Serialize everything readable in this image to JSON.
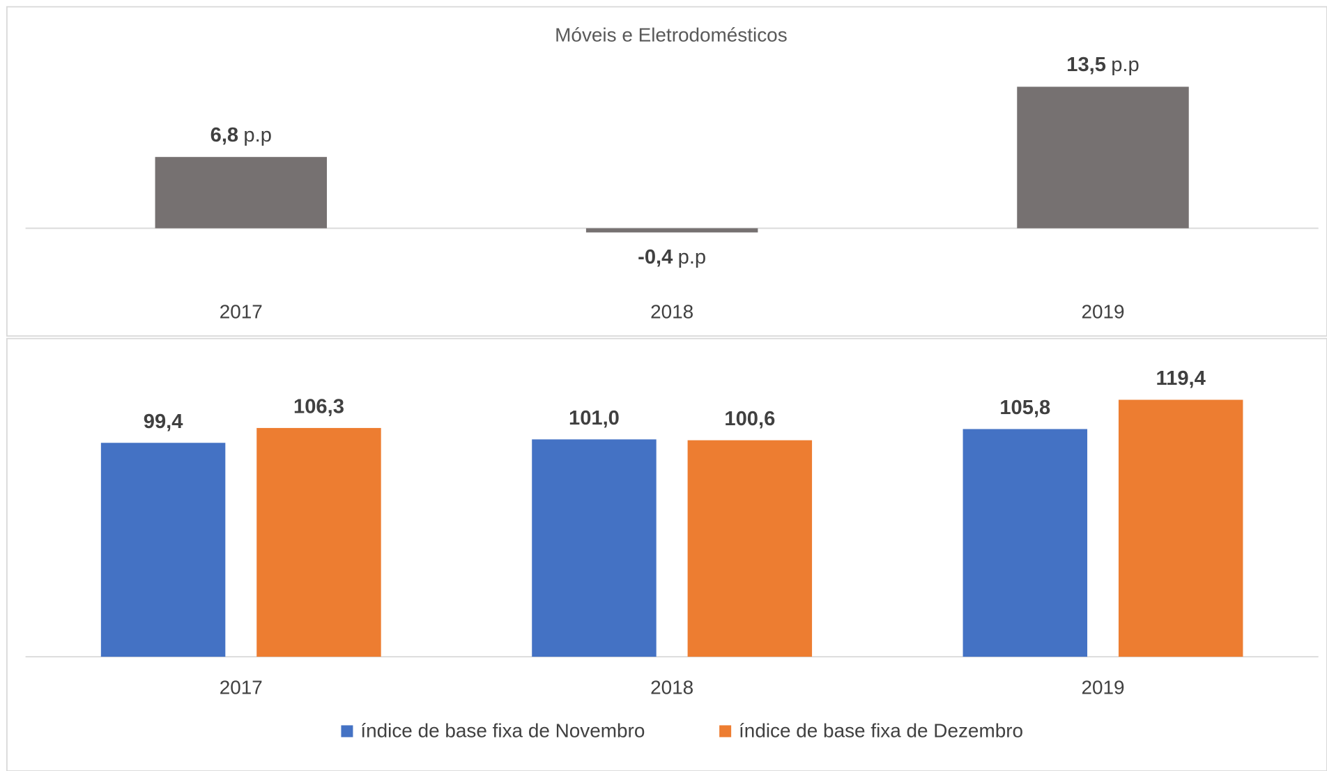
{
  "chart_data": [
    {
      "type": "bar",
      "title": "Móveis e Eletrodomésticos",
      "categories": [
        "2017",
        "2018",
        "2019"
      ],
      "values": [
        6.8,
        -0.4,
        13.5
      ],
      "value_labels": [
        "6,8",
        "-0,4",
        "13,5"
      ],
      "value_label_suffix": "p.p",
      "color": "#767171",
      "ylim": [
        -6,
        20
      ]
    },
    {
      "type": "grouped_bar",
      "categories": [
        "2017",
        "2018",
        "2019"
      ],
      "series": [
        {
          "name": "índice de base fixa de Novembro",
          "color": "#4472C4",
          "values": [
            99.4,
            101.0,
            105.8
          ],
          "value_labels": [
            "99,4",
            "101,0",
            "105,8"
          ]
        },
        {
          "name": "índice de base fixa de Dezembro",
          "color": "#ED7D31",
          "values": [
            106.3,
            100.6,
            119.4
          ],
          "value_labels": [
            "106,3",
            "100,6",
            "119,4"
          ]
        }
      ],
      "ylim": [
        0,
        140
      ],
      "legend": "bottom"
    }
  ]
}
